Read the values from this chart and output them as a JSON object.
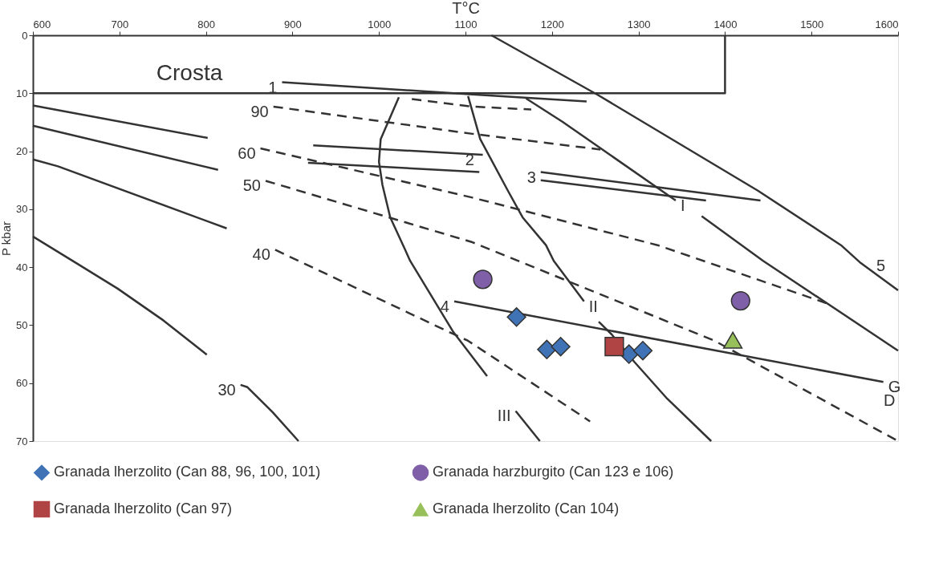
{
  "chart_data": {
    "type": "scatter",
    "xlabel": "T°C",
    "ylabel": "P kbar",
    "xlim": [
      600,
      1600
    ],
    "ylim": [
      70,
      0
    ],
    "xticks": [
      600,
      700,
      800,
      900,
      1000,
      1100,
      1200,
      1300,
      1400,
      1500,
      1600
    ],
    "yticks": [
      0,
      10,
      20,
      30,
      40,
      50,
      60,
      70
    ],
    "grid": false,
    "legend": "bottom",
    "series": [
      {
        "type": "line",
        "line_style": "solid",
        "color": "#333333",
        "x": [
          600,
          1400,
          1400
        ],
        "values": [
          10,
          10,
          0
        ]
      },
      {
        "type": "line",
        "line_style": "solid",
        "color": "#333333",
        "x": [
          888,
          1108,
          1240
        ],
        "values": [
          8.1,
          10.2,
          11.4
        ]
      },
      {
        "type": "line",
        "line_style": "solid",
        "color": "#333333",
        "x": [
          600,
          802
        ],
        "values": [
          12.1,
          17.7
        ]
      },
      {
        "type": "line",
        "line_style": "dashed",
        "color": "#333333",
        "x": [
          863,
          1108,
          1322,
          1517
        ],
        "values": [
          19.5,
          28.0,
          36.2,
          46.2
        ]
      },
      {
        "type": "line",
        "line_style": "dashed",
        "color": "#333333",
        "x": [
          878,
          1108,
          1256
        ],
        "values": [
          12.3,
          17.0,
          19.7
        ]
      },
      {
        "type": "line",
        "line_style": "dashed",
        "color": "#333333",
        "x": [
          1038,
          1108,
          1176
        ],
        "values": [
          11.0,
          12.3,
          12.8
        ]
      },
      {
        "type": "line",
        "line_style": "solid",
        "color": "#333333",
        "x": [
          600,
          814
        ],
        "values": [
          15.6,
          23.2
        ]
      },
      {
        "type": "line",
        "line_style": "dashed",
        "color": "#333333",
        "x": [
          869,
          1108,
          1388,
          1600
        ],
        "values": [
          25.1,
          35.7,
          52.7,
          70
        ]
      },
      {
        "type": "line",
        "line_style": "solid",
        "color": "#333333",
        "x": [
          600,
          629,
          824
        ],
        "values": [
          21.4,
          22.6,
          33.3
        ]
      },
      {
        "type": "line",
        "line_style": "dashed",
        "color": "#333333",
        "x": [
          880,
          1087,
          1103,
          1244
        ],
        "values": [
          37.0,
          51.6,
          52.7,
          66.6
        ]
      },
      {
        "type": "line",
        "line_style": "solid",
        "color": "#333333",
        "x": [
          600,
          648,
          698,
          751,
          801
        ],
        "values": [
          34.7,
          39.1,
          43.7,
          49.2,
          55.1
        ]
      },
      {
        "type": "line",
        "line_style": "solid",
        "color": "#333333",
        "x": [
          840,
          848,
          877,
          907
        ],
        "values": [
          60.3,
          60.7,
          65.0,
          70
        ]
      },
      {
        "type": "line",
        "line_style": "solid",
        "color": "#333333",
        "x": [
          924,
          1120
        ],
        "values": [
          19.0,
          20.6
        ]
      },
      {
        "type": "line",
        "line_style": "solid",
        "color": "#333333",
        "x": [
          918,
          1116
        ],
        "values": [
          22.0,
          23.6
        ]
      },
      {
        "type": "line",
        "line_style": "solid",
        "color": "#333333",
        "x": [
          1187,
          1441
        ],
        "values": [
          23.6,
          28.5
        ]
      },
      {
        "type": "line",
        "line_style": "solid",
        "color": "#333333",
        "x": [
          1187,
          1378
        ],
        "values": [
          25.0,
          28.5
        ]
      },
      {
        "type": "line",
        "line_style": "solid",
        "color": "#333333",
        "x": [
          1023,
          1002,
          1000,
          1004,
          1013,
          1030,
          1036,
          1086,
          1125
        ],
        "values": [
          10.7,
          17.9,
          21.8,
          25.8,
          31.4,
          36.9,
          38.9,
          51.2,
          58.8
        ]
      },
      {
        "type": "line",
        "line_style": "solid",
        "color": "#333333",
        "x": [
          1158,
          1186
        ],
        "values": [
          64.8,
          70
        ]
      },
      {
        "type": "line",
        "line_style": "solid",
        "color": "#333333",
        "x": [
          1103,
          1117,
          1149,
          1166,
          1193,
          1202,
          1237
        ],
        "values": [
          10.5,
          17.9,
          26.8,
          31.4,
          36.2,
          38.9,
          45.9
        ]
      },
      {
        "type": "line",
        "line_style": "solid",
        "color": "#333333",
        "x": [
          1254,
          1269,
          1295,
          1332,
          1384
        ],
        "values": [
          49.4,
          51.6,
          56.3,
          62.5,
          70
        ]
      },
      {
        "type": "line",
        "line_style": "solid",
        "color": "#333333",
        "x": [
          1170,
          1212,
          1343
        ],
        "values": [
          10.9,
          14.9,
          28.5
        ]
      },
      {
        "type": "line",
        "line_style": "solid",
        "color": "#333333",
        "x": [
          1373,
          1444,
          1600
        ],
        "values": [
          31.2,
          38.9,
          54.4
        ]
      },
      {
        "type": "line",
        "line_style": "solid",
        "color": "#333333",
        "x": [
          1130,
          1252,
          1438,
          1534,
          1557,
          1600
        ],
        "values": [
          0,
          10.2,
          26.8,
          36.2,
          39.3,
          44
        ]
      },
      {
        "type": "line",
        "line_style": "solid",
        "color": "#333333",
        "x": [
          1087,
          1583
        ],
        "values": [
          45.9,
          59.8
        ]
      },
      {
        "type": "scatter",
        "name": "Granada lherzolito (Can 88, 96, 100, 101)",
        "color": "#3f73b5",
        "marker": "diamond",
        "x": [
          1159,
          1194,
          1210,
          1289,
          1305
        ],
        "values": [
          48.6,
          54.2,
          53.7,
          55.0,
          54.4
        ]
      },
      {
        "type": "scatter",
        "name": "Granada harzburgito (Can 123 e 106)",
        "color": "#7f5fa8",
        "marker": "circle",
        "x": [
          1120,
          1418
        ],
        "values": [
          42.1,
          45.8
        ]
      },
      {
        "type": "scatter",
        "name": "Granada lherzolito (Can 97)",
        "color": "#b04444",
        "marker": "square",
        "x": [
          1272
        ],
        "values": [
          53.7
        ]
      },
      {
        "type": "scatter",
        "name": "Granada lherzolito (Can 104)",
        "color": "#98c05a",
        "marker": "triangle",
        "x": [
          1409
        ],
        "values": [
          52.6
        ]
      }
    ],
    "annotations": [
      "Crosta",
      {
        "text": "1",
        "x": 888,
        "y": 8.1
      },
      {
        "text": "90",
        "x": 878,
        "y": 12.3
      },
      {
        "text": "60",
        "x": 863,
        "y": 19.5
      },
      {
        "text": "50",
        "x": 869,
        "y": 25.1
      },
      {
        "text": "40",
        "x": 880,
        "y": 37.0
      },
      {
        "text": "30",
        "x": 840,
        "y": 60.3
      },
      {
        "text": "2",
        "x": 1105,
        "y": 23.5
      },
      {
        "text": "3",
        "x": 1187,
        "y": 23.6
      },
      {
        "text": "I",
        "x": 1343,
        "y": 28.5
      },
      {
        "text": "II",
        "x": 1237,
        "y": 45.9
      },
      {
        "text": "III",
        "x": 1158,
        "y": 64.8
      },
      {
        "text": "4",
        "x": 1087,
        "y": 45.9
      },
      {
        "text": "5",
        "x": 1580,
        "y": 41.8
      },
      {
        "text": "G",
        "x": 1583,
        "y": 59.8
      },
      "D"
    ]
  }
}
